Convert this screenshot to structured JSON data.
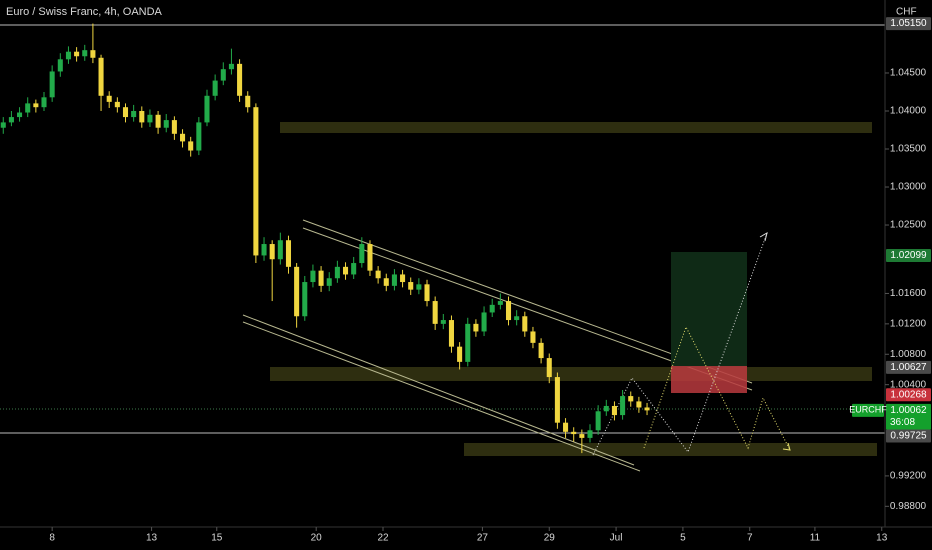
{
  "chart_data": {
    "type": "candlestick",
    "title": "Euro / Swiss Franc, 4h, OANDA",
    "currency": "CHF",
    "symbol": "EURCHF",
    "up_color": "#22ab4a",
    "down_color": "#f0d640",
    "ylim": [
      0.9862,
      1.0546
    ],
    "yticks": [
      {
        "value": 1.045,
        "label": "1.04500"
      },
      {
        "value": 1.04,
        "label": "1.04000"
      },
      {
        "value": 1.035,
        "label": "1.03500"
      },
      {
        "value": 1.03,
        "label": "1.03000"
      },
      {
        "value": 1.025,
        "label": "1.02500"
      },
      {
        "value": 1.016,
        "label": "1.01600"
      },
      {
        "value": 1.012,
        "label": "1.01200"
      },
      {
        "value": 1.008,
        "label": "1.00800"
      },
      {
        "value": 1.004,
        "label": "1.00400"
      },
      {
        "value": 0.992,
        "label": "0.99200"
      },
      {
        "value": 0.988,
        "label": "0.98800"
      }
    ],
    "xlim": [
      -0.4,
      108.2
    ],
    "xticks": [
      {
        "value": 6,
        "label": "8"
      },
      {
        "value": 18.2,
        "label": "13"
      },
      {
        "value": 26.2,
        "label": "15"
      },
      {
        "value": 38.4,
        "label": "20"
      },
      {
        "value": 46.6,
        "label": "22"
      },
      {
        "value": 58.8,
        "label": "27"
      },
      {
        "value": 67,
        "label": "29"
      },
      {
        "value": 75.2,
        "label": "Jul"
      },
      {
        "value": 83.4,
        "label": "5"
      },
      {
        "value": 91.6,
        "label": "7"
      },
      {
        "value": 99.6,
        "label": "11"
      },
      {
        "value": 107.8,
        "label": "13"
      }
    ],
    "price_tags": [
      {
        "value": 1.0515,
        "label": "1.05150",
        "color": "#4a4a4a"
      },
      {
        "value": 1.02099,
        "label": "1.02099",
        "color": "#1e7a34"
      },
      {
        "value": 1.00627,
        "label": "1.00627",
        "color": "#4a4a4a"
      },
      {
        "value": 1.00268,
        "label": "1.00268",
        "color": "#c8323c"
      },
      {
        "value": 1.00062,
        "label": "1.00062",
        "color": "#14a02c",
        "countdown": "36:08"
      },
      {
        "value": 0.99725,
        "label": "0.99725",
        "color": "#4a4a4a"
      }
    ],
    "open": [
      1.0378,
      1.0385,
      1.0392,
      1.0398,
      1.041,
      1.0405,
      1.0418,
      1.0452,
      1.0468,
      1.0478,
      1.0472,
      1.048,
      1.047,
      1.042,
      1.0412,
      1.0405,
      1.0392,
      1.04,
      1.0385,
      1.0395,
      1.0378,
      1.0388,
      1.037,
      1.036,
      1.0348,
      1.0385,
      1.042,
      1.044,
      1.0455,
      1.0462,
      1.042,
      1.0405,
      1.021,
      1.0225,
      1.0205,
      1.023,
      1.0195,
      1.013,
      1.0175,
      1.019,
      1.017,
      1.018,
      1.0195,
      1.0185,
      1.02,
      1.0225,
      1.019,
      1.018,
      1.017,
      1.0185,
      1.0175,
      1.0165,
      1.0172,
      1.015,
      1.012,
      1.0125,
      1.009,
      1.007,
      1.012,
      1.011,
      1.0135,
      1.0145,
      1.015,
      1.0125,
      1.013,
      1.011,
      1.0095,
      1.0075,
      1.005,
      0.999,
      0.9978,
      0.9975,
      0.997,
      0.998,
      1.0005,
      1.0012,
      1.0,
      1.0025,
      1.0018,
      1.001
    ],
    "high": [
      1.0392,
      1.04,
      1.0405,
      1.0418,
      1.0415,
      1.0425,
      1.046,
      1.0476,
      1.0485,
      1.0484,
      1.0487,
      1.0515,
      1.0474,
      1.0426,
      1.0418,
      1.041,
      1.0408,
      1.0406,
      1.0402,
      1.04,
      1.0396,
      1.0393,
      1.0376,
      1.0366,
      1.0392,
      1.0428,
      1.0448,
      1.0464,
      1.0482,
      1.0468,
      1.0426,
      1.041,
      1.0234,
      1.023,
      1.024,
      1.0236,
      1.02,
      1.0183,
      1.0198,
      1.0196,
      1.0188,
      1.0203,
      1.0201,
      1.0208,
      1.0234,
      1.023,
      1.0196,
      1.0186,
      1.0192,
      1.0191,
      1.0181,
      1.018,
      1.0178,
      1.0156,
      1.0133,
      1.0131,
      1.0096,
      1.0128,
      1.0126,
      1.0143,
      1.0153,
      1.016,
      1.0156,
      1.0138,
      1.0136,
      1.0116,
      1.0101,
      1.0081,
      1.0056,
      0.9996,
      0.9984,
      0.9981,
      0.9988,
      1.0013,
      1.002,
      1.0018,
      1.0033,
      1.0031,
      1.0024,
      1.0016
    ],
    "low": [
      1.037,
      1.038,
      1.0386,
      1.0392,
      1.0398,
      1.04,
      1.0412,
      1.0445,
      1.0462,
      1.0465,
      1.0466,
      1.0463,
      1.04,
      1.0404,
      1.0398,
      1.0385,
      1.0386,
      1.0378,
      1.0379,
      1.037,
      1.0372,
      1.0362,
      1.0352,
      1.034,
      1.0342,
      1.038,
      1.0414,
      1.0434,
      1.0448,
      1.0412,
      1.0398,
      1.02,
      1.0203,
      1.015,
      1.0198,
      1.0186,
      1.0115,
      1.0124,
      1.0168,
      1.0162,
      1.0163,
      1.0174,
      1.0178,
      1.0179,
      1.0194,
      1.0183,
      1.0173,
      1.0163,
      1.0164,
      1.0168,
      1.0158,
      1.0159,
      1.0143,
      1.0112,
      1.0113,
      1.0082,
      1.006,
      1.0064,
      1.0103,
      1.0104,
      1.0129,
      1.0139,
      1.0118,
      1.0118,
      1.0103,
      1.0088,
      1.0068,
      1.0042,
      0.9982,
      0.997,
      0.9965,
      0.995,
      0.9964,
      0.9974,
      0.9999,
      0.9993,
      0.9994,
      1.0011,
      1.0003,
      1.0
    ],
    "close": [
      1.0385,
      1.0392,
      1.0398,
      1.041,
      1.0405,
      1.0418,
      1.0452,
      1.0468,
      1.0478,
      1.0472,
      1.048,
      1.047,
      1.042,
      1.0412,
      1.0405,
      1.0392,
      1.04,
      1.0385,
      1.0395,
      1.0378,
      1.0388,
      1.037,
      1.036,
      1.0348,
      1.0385,
      1.042,
      1.044,
      1.0455,
      1.0462,
      1.042,
      1.0405,
      1.021,
      1.0225,
      1.0205,
      1.023,
      1.0195,
      1.013,
      1.0175,
      1.019,
      1.017,
      1.018,
      1.0195,
      1.0185,
      1.02,
      1.0225,
      1.019,
      1.018,
      1.017,
      1.0185,
      1.0175,
      1.0165,
      1.0172,
      1.015,
      1.012,
      1.0125,
      1.009,
      1.007,
      1.012,
      1.011,
      1.0135,
      1.0145,
      1.015,
      1.0125,
      1.013,
      1.011,
      1.0095,
      1.0075,
      1.005,
      0.999,
      0.9978,
      0.9975,
      0.997,
      0.998,
      1.0005,
      1.0012,
      1.0,
      1.0025,
      1.0018,
      1.001,
      1.00062
    ]
  }
}
